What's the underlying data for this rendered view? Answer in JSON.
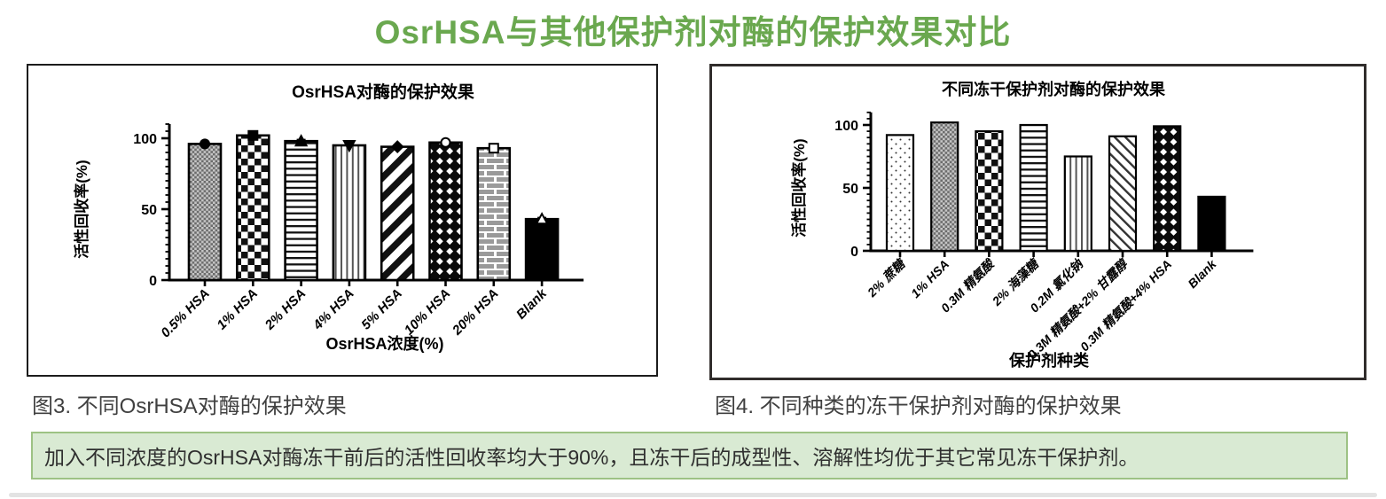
{
  "page": {
    "title": "OsrHSA与其他保护剂对酶的保护效果对比",
    "caption_fig3": "图3. 不同OsrHSA对酶的保护效果",
    "caption_fig4": "图4. 不同种类的冻干保护剂对酶的保护效果",
    "summary": "加入不同浓度的OsrHSA对酶冻干前后的活性回收率均大于90%，且冻干后的成型性、溶解性均优于其它常见冻干保护剂。"
  },
  "colors": {
    "title_green": "#6aa84f",
    "summary_bg": "#d9ead3",
    "summary_border": "#9dc284",
    "caption_text": "#404040",
    "bar_ink": "#000000"
  },
  "chart_data": [
    {
      "type": "bar",
      "title": "OsrHSA对酶的保护效果",
      "xlabel": "OsrHSA浓度(%)",
      "ylabel": "活性回收率(%)",
      "ylim": [
        0,
        110
      ],
      "yticks": [
        0,
        50,
        100
      ],
      "grid": false,
      "legend": "none",
      "categories": [
        "0.5% HSA",
        "1% HSA",
        "2% HSA",
        "4% HSA",
        "5% HSA",
        "10% HSA",
        "20% HSA",
        "Blank"
      ],
      "values": [
        96,
        102,
        98,
        95,
        94,
        97,
        93,
        43
      ],
      "errors": [
        1,
        1.5,
        1,
        1.5,
        1,
        1,
        1.5,
        1
      ],
      "patterns": [
        "fine-check",
        "coarse-check",
        "hlines",
        "vlines",
        "diag-down",
        "diamond",
        "bricks",
        "solid"
      ],
      "markers": [
        "circle-filled",
        "square-filled",
        "triangle-up-filled",
        "triangle-down-filled",
        "diamond-filled",
        "circle-open",
        "square-open",
        "triangle-open"
      ]
    },
    {
      "type": "bar",
      "title": "不同冻干保护剂对酶的保护效果",
      "xlabel": "保护剂种类",
      "ylabel": "活性回收率(%)",
      "ylim": [
        0,
        110
      ],
      "yticks": [
        0,
        50,
        100
      ],
      "grid": false,
      "legend": "none",
      "categories": [
        "2% 蔗糖",
        "1% HSA",
        "0.3M 精氨酸",
        "2% 海藻糖",
        "0.2M 氯化钠",
        "0.3M 精氨酸+2% 甘露醇",
        "0.3M 精氨酸+4% HSA",
        "Blank"
      ],
      "values": [
        92,
        102,
        95,
        100,
        75,
        91,
        99,
        43
      ],
      "errors": [
        0,
        0,
        0,
        0,
        0,
        0,
        0,
        0
      ],
      "patterns": [
        "dots",
        "fine-check",
        "coarse-check",
        "hlines",
        "vlines",
        "diag-up",
        "diamond",
        "solid"
      ],
      "markers": []
    }
  ]
}
